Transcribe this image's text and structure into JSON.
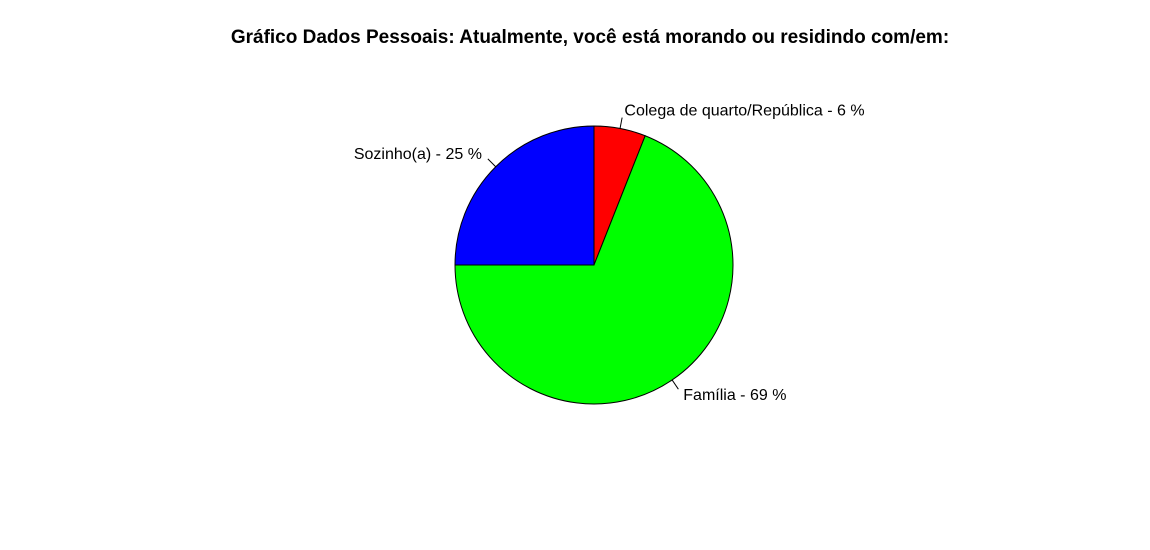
{
  "chart_data": {
    "type": "pie",
    "title": "Gráfico Dados Pessoais: Atualmente, você está morando ou residindo com/em:",
    "slices": [
      {
        "label": "Colega de quarto/República - 6 %",
        "value": 6,
        "color": "#ff0000"
      },
      {
        "label": "Família - 69 %",
        "value": 69,
        "color": "#00ff00"
      },
      {
        "label": "Sozinho(a) - 25 %",
        "value": 25,
        "color": "#0000ff"
      }
    ],
    "start_angle": "12 o'clock",
    "direction": "clockwise"
  }
}
